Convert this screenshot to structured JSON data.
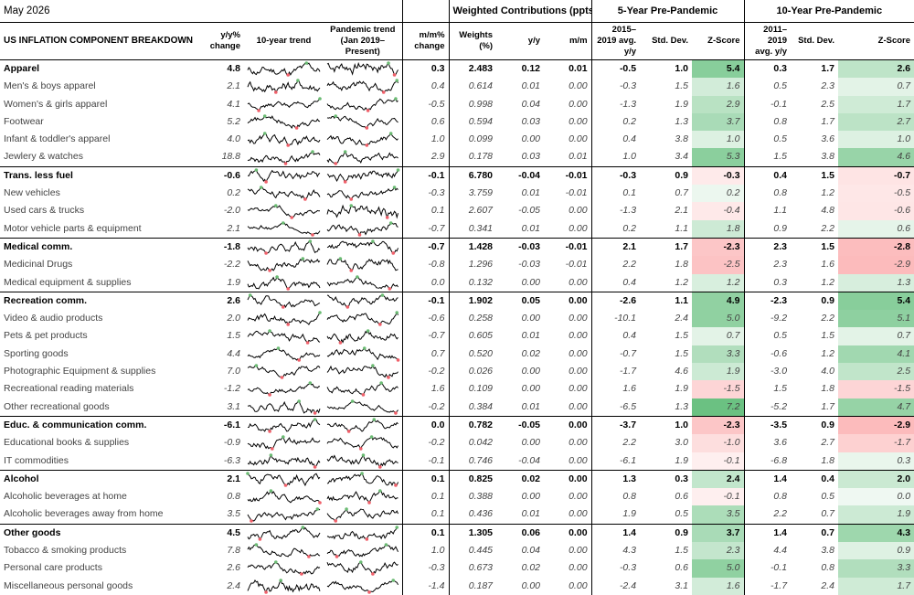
{
  "date": "May 2026",
  "headers": {
    "weighted_group": "Weighted Contributions (ppts)*",
    "five_year_group": "5-Year Pre-Pandemic",
    "ten_year_group": "10-Year Pre-Pandemic",
    "label": "US INFLATION COMPONENT BREAKDOWN",
    "yoy": "y/y% change",
    "trend10": "10-year trend",
    "pandemic": "Pandemic trend (Jan 2019–Present)",
    "mom": "m/m% change",
    "weights": "Weights (%)",
    "wyy": "y/y",
    "wmm": "m/m",
    "avg5": "2015–2019 avg. y/y",
    "std5": "Std. Dev.",
    "z5": "Z-Score",
    "avg10": "2011–2019 avg. y/y",
    "std10": "Std. Dev.",
    "z10": "Z-Score"
  },
  "colors": {
    "green": "#6bbb73",
    "red": "#f0606a",
    "line": "#000000"
  },
  "rows": [
    {
      "name": "Apparel",
      "cat": true,
      "yoy": "4.8",
      "mom": "0.3",
      "w": "2.483",
      "wyy": "0.12",
      "wmm": "0.01",
      "a5": "-0.5",
      "s5": "1.0",
      "z5": "5.4",
      "a10": "0.3",
      "s10": "1.7",
      "z10": "2.6"
    },
    {
      "name": "Men's & boys apparel",
      "yoy": "2.1",
      "mom": "0.4",
      "w": "0.614",
      "wyy": "0.01",
      "wmm": "0.00",
      "a5": "-0.3",
      "s5": "1.5",
      "z5": "1.6",
      "a10": "0.5",
      "s10": "2.3",
      "z10": "0.7"
    },
    {
      "name": "Women's & girls apparel",
      "yoy": "4.1",
      "mom": "-0.5",
      "w": "0.998",
      "wyy": "0.04",
      "wmm": "0.00",
      "a5": "-1.3",
      "s5": "1.9",
      "z5": "2.9",
      "a10": "-0.1",
      "s10": "2.5",
      "z10": "1.7"
    },
    {
      "name": "Footwear",
      "yoy": "5.2",
      "mom": "0.6",
      "w": "0.594",
      "wyy": "0.03",
      "wmm": "0.00",
      "a5": "0.2",
      "s5": "1.3",
      "z5": "3.7",
      "a10": "0.8",
      "s10": "1.7",
      "z10": "2.7"
    },
    {
      "name": "Infant & toddler's apparel",
      "yoy": "4.0",
      "mom": "1.0",
      "w": "0.099",
      "wyy": "0.00",
      "wmm": "0.00",
      "a5": "0.4",
      "s5": "3.8",
      "z5": "1.0",
      "a10": "0.5",
      "s10": "3.6",
      "z10": "1.0"
    },
    {
      "name": "Jewlery & watches",
      "yoy": "18.8",
      "mom": "2.9",
      "w": "0.178",
      "wyy": "0.03",
      "wmm": "0.01",
      "a5": "1.0",
      "s5": "3.4",
      "z5": "5.3",
      "a10": "1.5",
      "s10": "3.8",
      "z10": "4.6"
    },
    {
      "name": "Trans. less fuel",
      "cat": true,
      "yoy": "-0.6",
      "mom": "-0.1",
      "w": "6.780",
      "wyy": "-0.04",
      "wmm": "-0.01",
      "a5": "-0.3",
      "s5": "0.9",
      "z5": "-0.3",
      "a10": "0.4",
      "s10": "1.5",
      "z10": "-0.7"
    },
    {
      "name": "New vehicles",
      "yoy": "0.2",
      "mom": "-0.3",
      "w": "3.759",
      "wyy": "0.01",
      "wmm": "-0.01",
      "a5": "0.1",
      "s5": "0.7",
      "z5": "0.2",
      "a10": "0.8",
      "s10": "1.2",
      "z10": "-0.5"
    },
    {
      "name": "Used cars & trucks",
      "yoy": "-2.0",
      "mom": "0.1",
      "w": "2.607",
      "wyy": "-0.05",
      "wmm": "0.00",
      "a5": "-1.3",
      "s5": "2.1",
      "z5": "-0.4",
      "a10": "1.1",
      "s10": "4.8",
      "z10": "-0.6"
    },
    {
      "name": "Motor vehicle parts & equipment",
      "yoy": "2.1",
      "mom": "-0.7",
      "w": "0.341",
      "wyy": "0.01",
      "wmm": "0.00",
      "a5": "0.2",
      "s5": "1.1",
      "z5": "1.8",
      "a10": "0.9",
      "s10": "2.2",
      "z10": "0.6"
    },
    {
      "name": "Medical comm.",
      "cat": true,
      "yoy": "-1.8",
      "mom": "-0.7",
      "w": "1.428",
      "wyy": "-0.03",
      "wmm": "-0.01",
      "a5": "2.1",
      "s5": "1.7",
      "z5": "-2.3",
      "a10": "2.3",
      "s10": "1.5",
      "z10": "-2.8"
    },
    {
      "name": "Medicinal Drugs",
      "yoy": "-2.2",
      "mom": "-0.8",
      "w": "1.296",
      "wyy": "-0.03",
      "wmm": "-0.01",
      "a5": "2.2",
      "s5": "1.8",
      "z5": "-2.5",
      "a10": "2.3",
      "s10": "1.6",
      "z10": "-2.9"
    },
    {
      "name": "Medical equipment & supplies",
      "yoy": "1.9",
      "mom": "0.0",
      "w": "0.132",
      "wyy": "0.00",
      "wmm": "0.00",
      "a5": "0.4",
      "s5": "1.2",
      "z5": "1.2",
      "a10": "0.3",
      "s10": "1.2",
      "z10": "1.3"
    },
    {
      "name": "Recreation comm.",
      "cat": true,
      "yoy": "2.6",
      "mom": "-0.1",
      "w": "1.902",
      "wyy": "0.05",
      "wmm": "0.00",
      "a5": "-2.6",
      "s5": "1.1",
      "z5": "4.9",
      "a10": "-2.3",
      "s10": "0.9",
      "z10": "5.4"
    },
    {
      "name": "Video & audio products",
      "yoy": "2.0",
      "mom": "-0.6",
      "w": "0.258",
      "wyy": "0.00",
      "wmm": "0.00",
      "a5": "-10.1",
      "s5": "2.4",
      "z5": "5.0",
      "a10": "-9.2",
      "s10": "2.2",
      "z10": "5.1"
    },
    {
      "name": "Pets & pet products",
      "yoy": "1.5",
      "mom": "-0.7",
      "w": "0.605",
      "wyy": "0.01",
      "wmm": "0.00",
      "a5": "0.4",
      "s5": "1.5",
      "z5": "0.7",
      "a10": "0.5",
      "s10": "1.5",
      "z10": "0.7"
    },
    {
      "name": "Sporting goods",
      "yoy": "4.4",
      "mom": "0.7",
      "w": "0.520",
      "wyy": "0.02",
      "wmm": "0.00",
      "a5": "-0.7",
      "s5": "1.5",
      "z5": "3.3",
      "a10": "-0.6",
      "s10": "1.2",
      "z10": "4.1"
    },
    {
      "name": "Photographic Equipment & supplies",
      "yoy": "7.0",
      "mom": "-0.2",
      "w": "0.026",
      "wyy": "0.00",
      "wmm": "0.00",
      "a5": "-1.7",
      "s5": "4.6",
      "z5": "1.9",
      "a10": "-3.0",
      "s10": "4.0",
      "z10": "2.5"
    },
    {
      "name": "Recreational reading materials",
      "yoy": "-1.2",
      "mom": "1.6",
      "w": "0.109",
      "wyy": "0.00",
      "wmm": "0.00",
      "a5": "1.6",
      "s5": "1.9",
      "z5": "-1.5",
      "a10": "1.5",
      "s10": "1.8",
      "z10": "-1.5"
    },
    {
      "name": "Other recreational goods",
      "yoy": "3.1",
      "mom": "-0.2",
      "w": "0.384",
      "wyy": "0.01",
      "wmm": "0.00",
      "a5": "-6.5",
      "s5": "1.3",
      "z5": "7.2",
      "a10": "-5.2",
      "s10": "1.7",
      "z10": "4.7"
    },
    {
      "name": "Educ. & communication comm.",
      "cat": true,
      "yoy": "-6.1",
      "mom": "0.0",
      "w": "0.782",
      "wyy": "-0.05",
      "wmm": "0.00",
      "a5": "-3.7",
      "s5": "1.0",
      "z5": "-2.3",
      "a10": "-3.5",
      "s10": "0.9",
      "z10": "-2.9"
    },
    {
      "name": "Educational books & supplies",
      "yoy": "-0.9",
      "mom": "-0.2",
      "w": "0.042",
      "wyy": "0.00",
      "wmm": "0.00",
      "a5": "2.2",
      "s5": "3.0",
      "z5": "-1.0",
      "a10": "3.6",
      "s10": "2.7",
      "z10": "-1.7"
    },
    {
      "name": "IT commodities",
      "yoy": "-6.3",
      "mom": "-0.1",
      "w": "0.746",
      "wyy": "-0.04",
      "wmm": "0.00",
      "a5": "-6.1",
      "s5": "1.9",
      "z5": "-0.1",
      "a10": "-6.8",
      "s10": "1.8",
      "z10": "0.3"
    },
    {
      "name": "Alcohol",
      "cat": true,
      "yoy": "2.1",
      "mom": "0.1",
      "w": "0.825",
      "wyy": "0.02",
      "wmm": "0.00",
      "a5": "1.3",
      "s5": "0.3",
      "z5": "2.4",
      "a10": "1.4",
      "s10": "0.4",
      "z10": "2.0"
    },
    {
      "name": "Alcoholic beverages at home",
      "yoy": "0.8",
      "mom": "0.1",
      "w": "0.388",
      "wyy": "0.00",
      "wmm": "0.00",
      "a5": "0.8",
      "s5": "0.6",
      "z5": "-0.1",
      "a10": "0.8",
      "s10": "0.5",
      "z10": "0.0"
    },
    {
      "name": "Alcoholic beverages away from home",
      "yoy": "3.5",
      "mom": "0.1",
      "w": "0.436",
      "wyy": "0.01",
      "wmm": "0.00",
      "a5": "1.9",
      "s5": "0.5",
      "z5": "3.5",
      "a10": "2.2",
      "s10": "0.7",
      "z10": "1.9"
    },
    {
      "name": "Other goods",
      "cat": true,
      "yoy": "4.5",
      "mom": "0.1",
      "w": "1.305",
      "wyy": "0.06",
      "wmm": "0.00",
      "a5": "1.4",
      "s5": "0.9",
      "z5": "3.7",
      "a10": "1.4",
      "s10": "0.7",
      "z10": "4.3"
    },
    {
      "name": "Tobacco & smoking products",
      "yoy": "7.8",
      "mom": "1.0",
      "w": "0.445",
      "wyy": "0.04",
      "wmm": "0.00",
      "a5": "4.3",
      "s5": "1.5",
      "z5": "2.3",
      "a10": "4.4",
      "s10": "3.8",
      "z10": "0.9"
    },
    {
      "name": "Personal care products",
      "yoy": "2.6",
      "mom": "-0.3",
      "w": "0.673",
      "wyy": "0.02",
      "wmm": "0.00",
      "a5": "-0.3",
      "s5": "0.6",
      "z5": "5.0",
      "a10": "-0.1",
      "s10": "0.8",
      "z10": "3.3"
    },
    {
      "name": "Miscellaneous personal goods",
      "yoy": "2.4",
      "mom": "-1.4",
      "w": "0.187",
      "wyy": "0.00",
      "wmm": "0.00",
      "a5": "-2.4",
      "s5": "3.1",
      "z5": "1.6",
      "a10": "-1.7",
      "s10": "2.4",
      "z10": "1.7"
    }
  ]
}
